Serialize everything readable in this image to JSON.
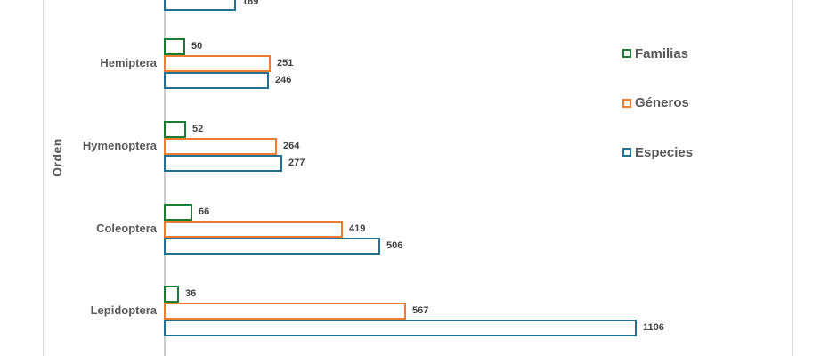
{
  "chart_data": {
    "type": "bar",
    "orientation": "horizontal",
    "title": "",
    "xlabel": "",
    "ylabel": "Orden",
    "legend_position": "right",
    "grid": false,
    "note": "chart cropped at top: only the Especies bar (169) of the topmost order is visible",
    "categories": [
      "",
      "Hemiptera",
      "Hymenoptera",
      "Coleoptera",
      "Lepidoptera"
    ],
    "series": [
      {
        "key": "familias",
        "name": "Familias",
        "color": "#1E7B34",
        "values": [
          null,
          50,
          52,
          66,
          36
        ]
      },
      {
        "key": "generos",
        "name": "Géneros",
        "color": "#ED7D31",
        "values": [
          null,
          251,
          264,
          419,
          567
        ]
      },
      {
        "key": "especies",
        "name": "Especies",
        "color": "#21718F",
        "values": [
          169,
          246,
          277,
          506,
          1106
        ]
      }
    ],
    "colors": {
      "text_gray": "#595959",
      "value_label_gray": "#404040",
      "axis_line": "#cccccc",
      "frame_border": "#d9d9d9"
    }
  }
}
